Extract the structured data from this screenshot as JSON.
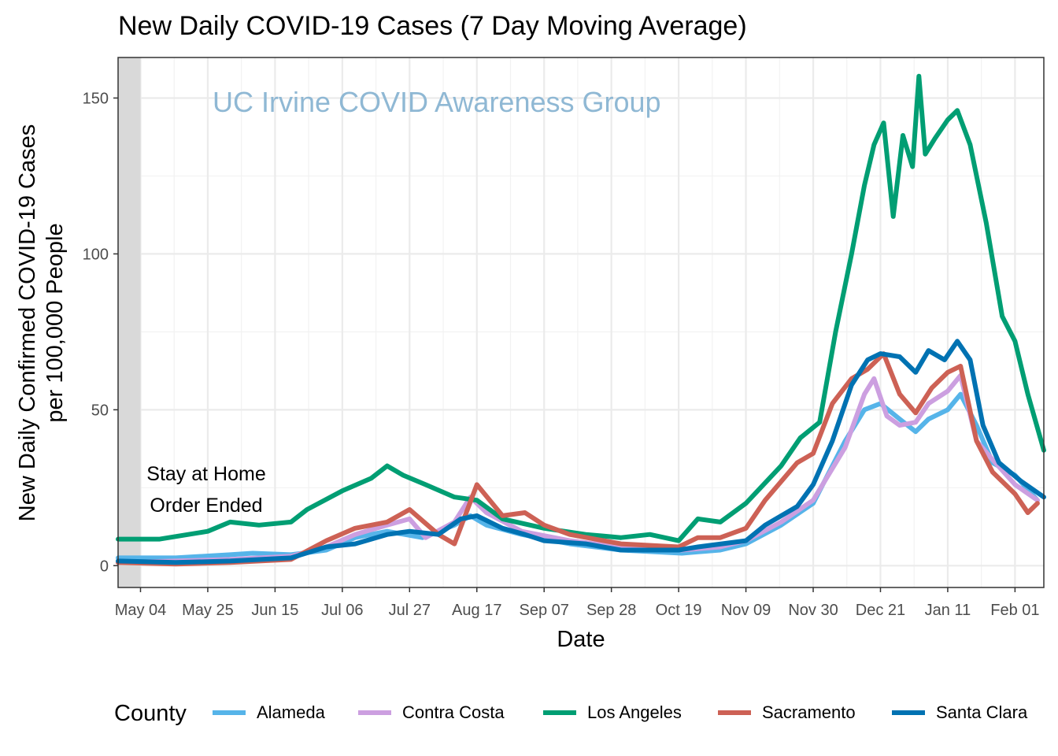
{
  "chart_data": {
    "type": "line",
    "title": "New Daily COVID-19 Cases (7 Day Moving Average)",
    "xlabel": "Date",
    "ylabel_line1": "New Daily Confirmed COVID-19 Cases",
    "ylabel_line2": "per 100,000 People",
    "watermark": "UC Irvine COVID Awareness Group",
    "annotation_line1": "Stay at Home",
    "annotation_line2": "Order Ended",
    "legend_title": "County",
    "legend_position": "bottom",
    "grid": true,
    "x_tick_labels": [
      "May 04",
      "May 25",
      "Jun 15",
      "Jul 06",
      "Jul 27",
      "Aug 17",
      "Sep 07",
      "Sep 28",
      "Oct 19",
      "Nov 09",
      "Nov 30",
      "Dec 21",
      "Jan 11",
      "Feb 01"
    ],
    "x_start_date": "2020-04-27",
    "x_end_date": "2021-02-10",
    "shaded_region": [
      "2020-04-27",
      "2020-05-04"
    ],
    "y_ticks": [
      0,
      50,
      100,
      150
    ],
    "ylim": [
      -7,
      163
    ],
    "series": [
      {
        "name": "Alameda",
        "color": "#56B4E9",
        "points": [
          [
            "2020-04-27",
            2.5
          ],
          [
            "2020-05-15",
            2.5
          ],
          [
            "2020-06-01",
            3.5
          ],
          [
            "2020-06-08",
            4
          ],
          [
            "2020-06-20",
            3.5
          ],
          [
            "2020-07-01",
            5
          ],
          [
            "2020-07-10",
            9
          ],
          [
            "2020-07-20",
            11
          ],
          [
            "2020-07-31",
            9
          ],
          [
            "2020-08-10",
            13
          ],
          [
            "2020-08-15",
            16
          ],
          [
            "2020-08-20",
            13
          ],
          [
            "2020-08-31",
            10
          ],
          [
            "2020-09-15",
            7
          ],
          [
            "2020-10-01",
            5
          ],
          [
            "2020-10-20",
            4
          ],
          [
            "2020-11-01",
            5
          ],
          [
            "2020-11-09",
            7
          ],
          [
            "2020-11-20",
            13
          ],
          [
            "2020-11-30",
            20
          ],
          [
            "2020-12-10",
            40
          ],
          [
            "2020-12-16",
            50
          ],
          [
            "2020-12-21",
            52
          ],
          [
            "2020-12-27",
            47
          ],
          [
            "2021-01-01",
            43
          ],
          [
            "2021-01-05",
            47
          ],
          [
            "2021-01-11",
            50
          ],
          [
            "2021-01-15",
            55
          ],
          [
            "2021-01-20",
            45
          ],
          [
            "2021-01-25",
            33
          ],
          [
            "2021-02-01",
            29
          ],
          [
            "2021-02-08",
            21
          ]
        ]
      },
      {
        "name": "Contra Costa",
        "color": "#CC9FE0",
        "points": [
          [
            "2020-04-27",
            1
          ],
          [
            "2020-05-15",
            1.5
          ],
          [
            "2020-06-01",
            2
          ],
          [
            "2020-06-20",
            3
          ],
          [
            "2020-07-01",
            6
          ],
          [
            "2020-07-10",
            10
          ],
          [
            "2020-07-20",
            13
          ],
          [
            "2020-07-27",
            15
          ],
          [
            "2020-08-01",
            9
          ],
          [
            "2020-08-10",
            14
          ],
          [
            "2020-08-15",
            22
          ],
          [
            "2020-08-20",
            17
          ],
          [
            "2020-08-31",
            11
          ],
          [
            "2020-09-15",
            8
          ],
          [
            "2020-10-01",
            6
          ],
          [
            "2020-10-20",
            5
          ],
          [
            "2020-11-01",
            6
          ],
          [
            "2020-11-09",
            8
          ],
          [
            "2020-11-20",
            14
          ],
          [
            "2020-11-30",
            21
          ],
          [
            "2020-12-10",
            38
          ],
          [
            "2020-12-16",
            55
          ],
          [
            "2020-12-19",
            60
          ],
          [
            "2020-12-23",
            48
          ],
          [
            "2020-12-27",
            45
          ],
          [
            "2021-01-01",
            46
          ],
          [
            "2021-01-05",
            52
          ],
          [
            "2021-01-11",
            56
          ],
          [
            "2021-01-15",
            61
          ],
          [
            "2021-01-20",
            40
          ],
          [
            "2021-01-25",
            34
          ],
          [
            "2021-02-01",
            26
          ],
          [
            "2021-02-08",
            21
          ]
        ]
      },
      {
        "name": "Los Angeles",
        "color": "#009E73",
        "points": [
          [
            "2020-04-27",
            8.5
          ],
          [
            "2020-05-10",
            8.5
          ],
          [
            "2020-05-25",
            11
          ],
          [
            "2020-06-01",
            14
          ],
          [
            "2020-06-10",
            13
          ],
          [
            "2020-06-20",
            14
          ],
          [
            "2020-06-25",
            18
          ],
          [
            "2020-07-06",
            24
          ],
          [
            "2020-07-15",
            28
          ],
          [
            "2020-07-20",
            32
          ],
          [
            "2020-07-25",
            29
          ],
          [
            "2020-08-01",
            26
          ],
          [
            "2020-08-10",
            22
          ],
          [
            "2020-08-17",
            21
          ],
          [
            "2020-08-25",
            15
          ],
          [
            "2020-09-07",
            12
          ],
          [
            "2020-09-20",
            10
          ],
          [
            "2020-10-01",
            9
          ],
          [
            "2020-10-10",
            10
          ],
          [
            "2020-10-19",
            8
          ],
          [
            "2020-10-25",
            15
          ],
          [
            "2020-11-01",
            14
          ],
          [
            "2020-11-09",
            20
          ],
          [
            "2020-11-20",
            32
          ],
          [
            "2020-11-26",
            41
          ],
          [
            "2020-12-02",
            46
          ],
          [
            "2020-12-07",
            75
          ],
          [
            "2020-12-12",
            100
          ],
          [
            "2020-12-16",
            122
          ],
          [
            "2020-12-19",
            135
          ],
          [
            "2020-12-22",
            142
          ],
          [
            "2020-12-25",
            112
          ],
          [
            "2020-12-28",
            138
          ],
          [
            "2020-12-31",
            128
          ],
          [
            "2021-01-02",
            157
          ],
          [
            "2021-01-04",
            132
          ],
          [
            "2021-01-07",
            137
          ],
          [
            "2021-01-11",
            143
          ],
          [
            "2021-01-14",
            146
          ],
          [
            "2021-01-18",
            135
          ],
          [
            "2021-01-23",
            110
          ],
          [
            "2021-01-28",
            80
          ],
          [
            "2021-02-01",
            72
          ],
          [
            "2021-02-05",
            55
          ],
          [
            "2021-02-10",
            37
          ]
        ]
      },
      {
        "name": "Sacramento",
        "color": "#CD6155",
        "points": [
          [
            "2020-04-27",
            1
          ],
          [
            "2020-05-15",
            0.5
          ],
          [
            "2020-06-01",
            1
          ],
          [
            "2020-06-20",
            2
          ],
          [
            "2020-07-01",
            8
          ],
          [
            "2020-07-10",
            12
          ],
          [
            "2020-07-20",
            14
          ],
          [
            "2020-07-27",
            18
          ],
          [
            "2020-08-05",
            10
          ],
          [
            "2020-08-10",
            7
          ],
          [
            "2020-08-17",
            26
          ],
          [
            "2020-08-25",
            16
          ],
          [
            "2020-09-01",
            17
          ],
          [
            "2020-09-07",
            13
          ],
          [
            "2020-09-15",
            10
          ],
          [
            "2020-10-01",
            7
          ],
          [
            "2020-10-19",
            6
          ],
          [
            "2020-10-25",
            9
          ],
          [
            "2020-11-01",
            9
          ],
          [
            "2020-11-09",
            12
          ],
          [
            "2020-11-15",
            21
          ],
          [
            "2020-11-25",
            33
          ],
          [
            "2020-11-30",
            36
          ],
          [
            "2020-12-06",
            52
          ],
          [
            "2020-12-12",
            60
          ],
          [
            "2020-12-17",
            63
          ],
          [
            "2020-12-22",
            68
          ],
          [
            "2020-12-27",
            55
          ],
          [
            "2021-01-01",
            49
          ],
          [
            "2021-01-06",
            57
          ],
          [
            "2021-01-11",
            62
          ],
          [
            "2021-01-15",
            64
          ],
          [
            "2021-01-20",
            40
          ],
          [
            "2021-01-25",
            30
          ],
          [
            "2021-02-01",
            23
          ],
          [
            "2021-02-05",
            17
          ],
          [
            "2021-02-08",
            20
          ]
        ]
      },
      {
        "name": "Santa Clara",
        "color": "#0072B2",
        "points": [
          [
            "2020-04-27",
            1.5
          ],
          [
            "2020-05-15",
            1
          ],
          [
            "2020-06-01",
            1.5
          ],
          [
            "2020-06-20",
            2.5
          ],
          [
            "2020-07-01",
            6
          ],
          [
            "2020-07-10",
            7
          ],
          [
            "2020-07-20",
            10
          ],
          [
            "2020-07-27",
            11
          ],
          [
            "2020-08-05",
            10
          ],
          [
            "2020-08-12",
            15
          ],
          [
            "2020-08-17",
            16
          ],
          [
            "2020-08-25",
            12
          ],
          [
            "2020-09-01",
            10
          ],
          [
            "2020-09-07",
            8
          ],
          [
            "2020-09-20",
            7
          ],
          [
            "2020-10-01",
            5
          ],
          [
            "2020-10-19",
            5
          ],
          [
            "2020-10-25",
            6
          ],
          [
            "2020-11-09",
            8
          ],
          [
            "2020-11-15",
            13
          ],
          [
            "2020-11-25",
            19
          ],
          [
            "2020-11-30",
            26
          ],
          [
            "2020-12-06",
            40
          ],
          [
            "2020-12-12",
            58
          ],
          [
            "2020-12-17",
            66
          ],
          [
            "2020-12-21",
            68
          ],
          [
            "2020-12-27",
            67
          ],
          [
            "2021-01-01",
            62
          ],
          [
            "2021-01-05",
            69
          ],
          [
            "2021-01-10",
            66
          ],
          [
            "2021-01-14",
            72
          ],
          [
            "2021-01-18",
            66
          ],
          [
            "2021-01-22",
            45
          ],
          [
            "2021-01-27",
            33
          ],
          [
            "2021-02-03",
            27
          ],
          [
            "2021-02-10",
            22
          ]
        ]
      }
    ]
  }
}
